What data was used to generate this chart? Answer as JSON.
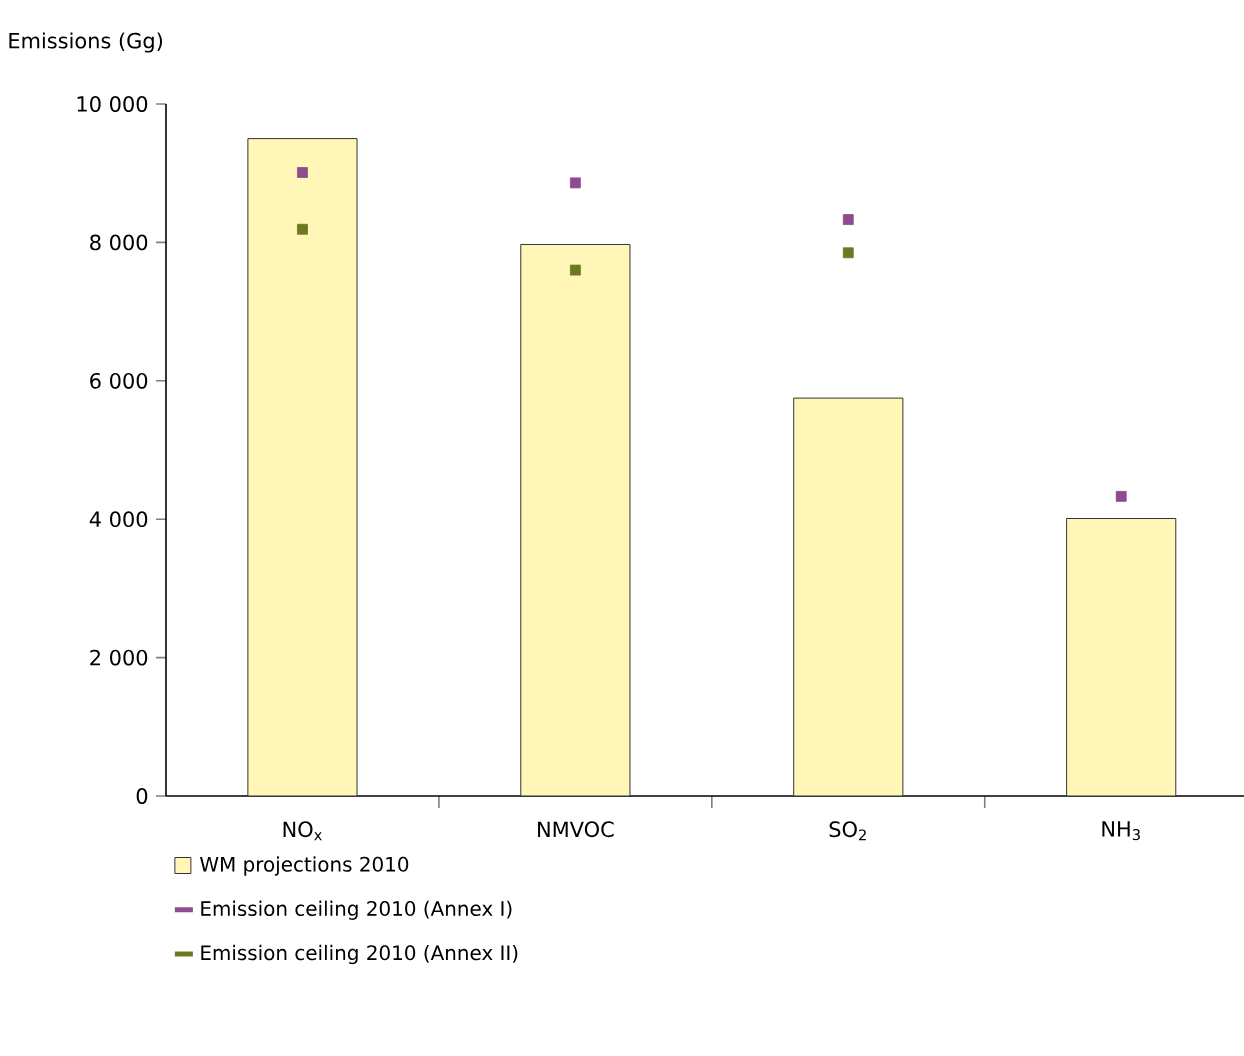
{
  "chart_data": {
    "type": "bar",
    "ylabel": "Emissions (Gg)",
    "categories": [
      "NO$_{x}$",
      "NMVOC",
      "SO$_{2}$",
      "NH$_{3}$"
    ],
    "series": [
      {
        "name": "WM projections  2010",
        "color": "#fff6b8",
        "values": [
          9500,
          7970,
          5750,
          4010
        ]
      },
      {
        "name": "Emission ceiling 2010 (Annex I)",
        "type": "scatter",
        "color": "#8e4b8e",
        "values": [
          9010,
          8860,
          8330,
          4330
        ]
      },
      {
        "name": "Emission ceiling 2010 (Annex II)",
        "type": "scatter",
        "color": "#6b7a1f",
        "values": [
          8190,
          7600,
          7850,
          null
        ]
      }
    ],
    "ylim": [
      0,
      10000
    ],
    "yticks": [
      0,
      {
        "value": 2000,
        "label": "2 000"
      },
      {
        "value": 4000,
        "label": "4 000"
      },
      {
        "value": 6000,
        "label": "6 000"
      },
      {
        "value": 8000,
        "label": "8 000"
      },
      {
        "value": 10000,
        "label": "10 000"
      }
    ],
    "legend": "bottom"
  }
}
